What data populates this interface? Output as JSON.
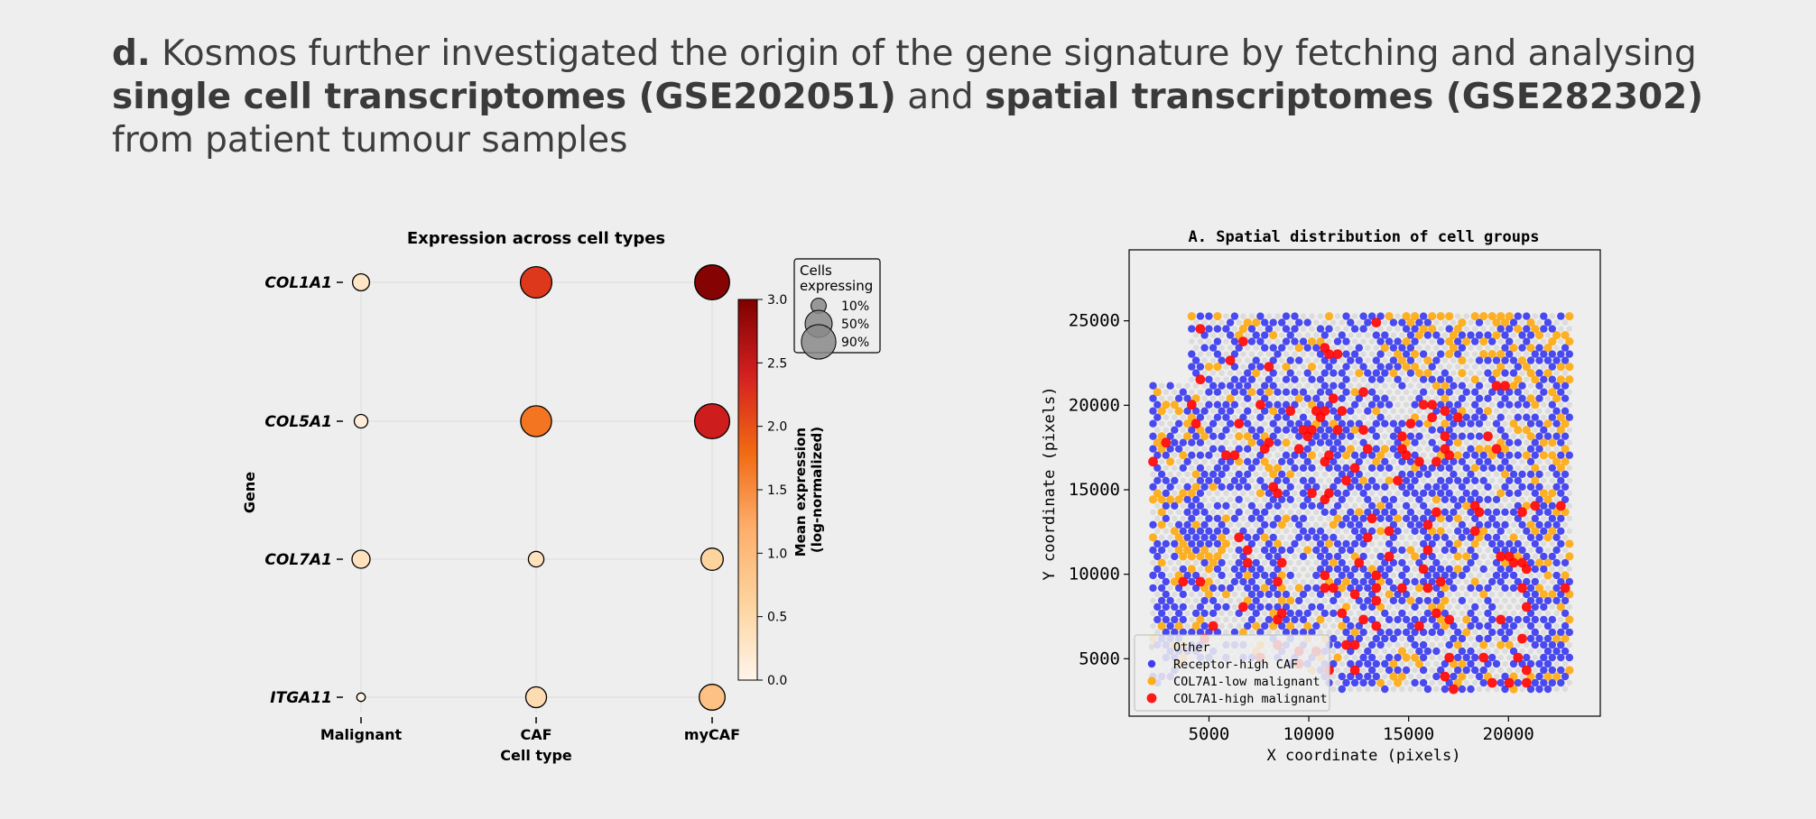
{
  "headline": {
    "prefix": "d.",
    "part1": " Kosmos further investigated the origin of the gene signature by fetching and analysing ",
    "bold1": "single cell transcriptomes (GSE202051)",
    "part2": " and ",
    "bold2": "spatial transcriptomes (GSE282302)",
    "part3": " from patient tumour samples"
  },
  "chart_data": [
    {
      "type": "dotplot",
      "title": "Expression across cell types",
      "xlabel": "Cell type",
      "ylabel": "Gene",
      "categories": [
        "Malignant",
        "CAF",
        "myCAF"
      ],
      "genes": [
        "COL1A1",
        "COL5A1",
        "COL7A1",
        "ITGA11"
      ],
      "mean_expression": [
        [
          0.3,
          2.2,
          2.95
        ],
        [
          0.15,
          1.7,
          2.45
        ],
        [
          0.35,
          0.35,
          0.6
        ],
        [
          0.05,
          0.45,
          0.9
        ]
      ],
      "fraction_expressing": [
        [
          0.14,
          0.72,
          0.92
        ],
        [
          0.07,
          0.69,
          0.93
        ],
        [
          0.17,
          0.11,
          0.3
        ],
        [
          0.01,
          0.25,
          0.44
        ]
      ],
      "colorbar": {
        "label": "Mean expression\n(log-normalized)",
        "label_lines": [
          "Mean expression",
          "(log-normalized)"
        ],
        "range": [
          0.0,
          3.0
        ],
        "ticks": [
          "0.0",
          "0.5",
          "1.0",
          "1.5",
          "2.0",
          "2.5",
          "3.0"
        ]
      },
      "size_legend": {
        "title_lines": [
          "Cells",
          "expressing"
        ],
        "entries": [
          "10%",
          "50%",
          "90%"
        ],
        "values": [
          0.1,
          0.5,
          0.9
        ]
      }
    },
    {
      "type": "scatter",
      "title": "A. Spatial distribution of cell groups",
      "xlabel": "X coordinate (pixels)",
      "ylabel": "Y coordinate (pixels)",
      "xlim": [
        1000,
        24600
      ],
      "ylim": [
        29200,
        1600
      ],
      "xticks": [
        5000,
        10000,
        15000,
        20000
      ],
      "yticks": [
        5000,
        10000,
        15000,
        20000,
        25000
      ],
      "xtick_labels": [
        "5000",
        "10000",
        "15000",
        "20000"
      ],
      "ytick_labels": [
        "5000",
        "10000",
        "15000",
        "20000",
        "25000"
      ],
      "series": [
        {
          "name": "Other",
          "color": "#d0d0d0"
        },
        {
          "name": "Receptor-high CAF",
          "color": "#2b2bf0"
        },
        {
          "name": "COL7A1-low malignant",
          "color": "#ffa500"
        },
        {
          "name": "COL7A1-high malignant",
          "color": "#ff0000"
        }
      ],
      "tissue_extent": {
        "x": [
          2200,
          23200
        ],
        "y": [
          3200,
          25500
        ]
      },
      "point_counts": {
        "Receptor-high CAF": 900,
        "COL7A1-low malignant": 260,
        "COL7A1-high malignant": 120
      },
      "notes": "Points drawn as a representative hex-grid sample of the displayed spot distribution."
    }
  ]
}
